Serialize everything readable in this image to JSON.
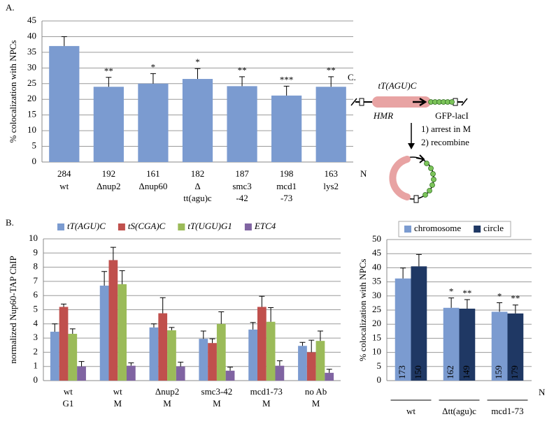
{
  "chart_data": [
    {
      "type": "bar",
      "panel": "A.",
      "ylabel": "% colocalization with NPCs",
      "categories": [
        [
          "wt"
        ],
        [
          "Δnup2"
        ],
        [
          "Δnup60"
        ],
        [
          "Δ",
          "tt(agu)c"
        ],
        [
          "smc3",
          "-42"
        ],
        [
          "mcd1",
          "-73"
        ],
        [
          "lys2"
        ]
      ],
      "n_values": [
        284,
        192,
        161,
        182,
        187,
        198,
        163
      ],
      "n_label": "N",
      "series": [
        {
          "name": null,
          "color": "#7b9bd0",
          "values": [
            37,
            24,
            25,
            26.5,
            24.2,
            21.2,
            24
          ],
          "errors": [
            3,
            3,
            3.2,
            3.3,
            3,
            3,
            3.2
          ],
          "annotations": [
            null,
            "**",
            "*",
            "*",
            "**",
            "***",
            "**"
          ]
        }
      ],
      "ylim": [
        0,
        45
      ],
      "yticks": [
        0,
        5,
        10,
        15,
        20,
        25,
        30,
        35,
        40,
        45
      ],
      "grid": true
    },
    {
      "type": "bar",
      "panel": "B.",
      "ylabel": "normalized Nup60-TAP ChIP",
      "legend": "top",
      "categories": [
        [
          "wt",
          "G1"
        ],
        [
          "wt",
          "M"
        ],
        [
          "Δnup2",
          "M"
        ],
        [
          "smc3-42",
          "M"
        ],
        [
          "mcd1-73",
          "M"
        ],
        [
          "no Ab",
          "M"
        ]
      ],
      "series": [
        {
          "name": "tT(AGU)C",
          "color": "#7b9bd0",
          "values": [
            3.45,
            6.7,
            3.75,
            2.95,
            3.6,
            2.45
          ],
          "errors": [
            0.55,
            1.0,
            0.25,
            0.55,
            0.5,
            0.25
          ]
        },
        {
          "name": "tS(CGA)C",
          "color": "#c0504d",
          "values": [
            5.2,
            8.5,
            4.75,
            2.65,
            5.2,
            2.0
          ],
          "errors": [
            0.2,
            0.9,
            1.1,
            0.3,
            0.75,
            0.85
          ]
        },
        {
          "name": "tT(UGU)G1",
          "color": "#9bbb59",
          "values": [
            3.3,
            6.8,
            3.55,
            4.0,
            4.15,
            2.8
          ],
          "errors": [
            0.35,
            0.95,
            0.2,
            0.85,
            1.0,
            0.7
          ]
        },
        {
          "name": "ETC4",
          "color": "#8064a2",
          "values": [
            1.0,
            1.05,
            1.0,
            0.7,
            1.05,
            0.55
          ],
          "errors": [
            0.35,
            0.2,
            0.3,
            0.25,
            0.35,
            0.25
          ]
        }
      ],
      "ylim": [
        0,
        10
      ],
      "yticks": [
        0,
        1,
        2,
        3,
        4,
        5,
        6,
        7,
        8,
        9,
        10
      ],
      "grid": true
    },
    {
      "type": "bar",
      "ylabel": "% colocalization with NPCs",
      "legend": "top",
      "n_label": "N",
      "categories": [
        [
          "wt"
        ],
        [
          "Δtt(agu)c"
        ],
        [
          "mcd1-73"
        ]
      ],
      "series": [
        {
          "name": "chromosome",
          "color": "#7b9bd0",
          "values": [
            36.2,
            25.8,
            24.4
          ],
          "errors": [
            3.7,
            3.5,
            3.2
          ],
          "annotations": [
            null,
            "*",
            "*"
          ],
          "n_values": [
            173,
            162,
            159
          ]
        },
        {
          "name": "circle",
          "color": "#1f3864",
          "values": [
            40.5,
            25.5,
            23.8
          ],
          "errors": [
            4.2,
            3.2,
            3.0
          ],
          "annotations": [
            null,
            "**",
            "**"
          ],
          "n_values": [
            150,
            149,
            179
          ]
        }
      ],
      "ylim": [
        0,
        50
      ],
      "yticks": [
        0,
        5,
        10,
        15,
        20,
        25,
        30,
        35,
        40,
        45,
        50
      ],
      "grid": true
    }
  ],
  "diagram": {
    "panel": "C.",
    "gene": "tT(AGU)C",
    "locus": "HMR",
    "reporter": "GFP-lacI",
    "step1": "1) arrest in M",
    "step2": "2) recombine"
  }
}
